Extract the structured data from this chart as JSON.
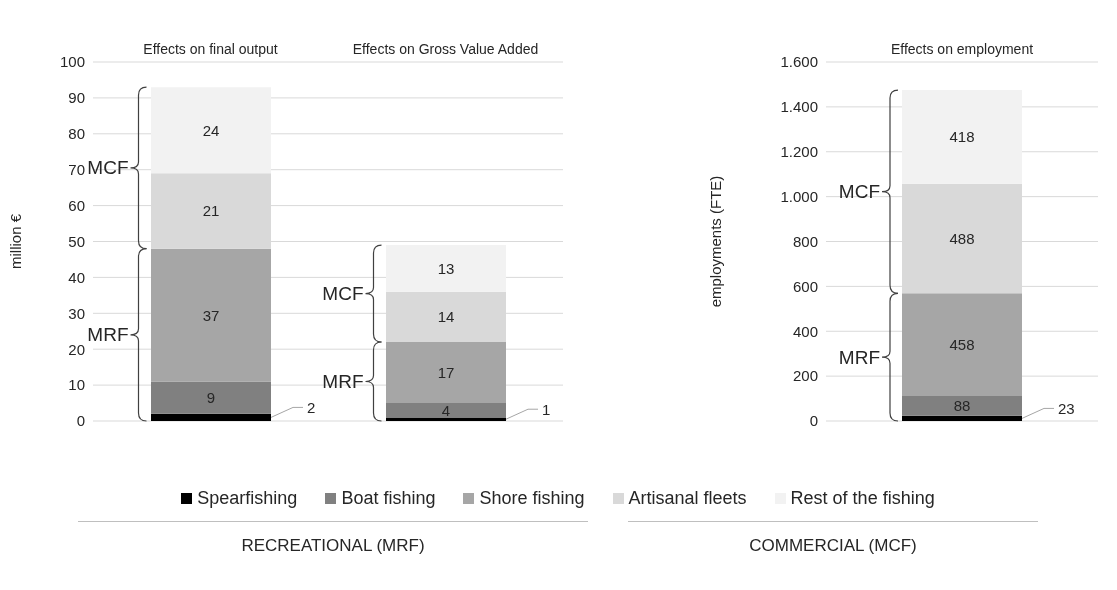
{
  "chart_data": [
    {
      "type": "bar",
      "stacked": true,
      "categories": [
        "Effects on final output",
        "Effects on Gross Value Added"
      ],
      "ylabel": "million €",
      "ylim": [
        0,
        100
      ],
      "yticks": [
        0,
        10,
        20,
        30,
        40,
        50,
        60,
        70,
        80,
        90,
        100
      ],
      "grid": "y",
      "legend": "bottom",
      "data_labels": true,
      "series": [
        {
          "name": "Spearfishing",
          "color": "#000000",
          "values": [
            2,
            1
          ]
        },
        {
          "name": "Boat fishing",
          "color": "#808080",
          "values": [
            9,
            4
          ]
        },
        {
          "name": "Shore fishing",
          "color": "#a6a6a6",
          "values": [
            37,
            17
          ]
        },
        {
          "name": "Artisanal fleets",
          "color": "#d9d9d9",
          "values": [
            21,
            14
          ]
        },
        {
          "name": "Rest of the fishing",
          "color": "#f2f2f2",
          "values": [
            24,
            13
          ]
        }
      ],
      "annotations": [
        "MCF",
        "MRF",
        "MCF",
        "MRF",
        "RECREATIONAL (MRF)",
        "COMMERCIAL (MCF)"
      ]
    },
    {
      "type": "bar",
      "stacked": true,
      "categories": [
        "Effects on employment"
      ],
      "ylabel": "employments (FTE)",
      "ylim": [
        0,
        1600
      ],
      "yticks": [
        0,
        200,
        400,
        600,
        800,
        {
          "value": 1000,
          "label": "1.000"
        },
        {
          "value": 1200,
          "label": "1.200"
        },
        {
          "value": 1400,
          "label": "1.400"
        },
        {
          "value": 1600,
          "label": "1.600"
        }
      ],
      "grid": "y",
      "data_labels": true,
      "series": [
        {
          "color": "#000000",
          "values": [
            23
          ]
        },
        {
          "color": "#808080",
          "values": [
            88
          ]
        },
        {
          "color": "#a6a6a6",
          "values": [
            458
          ]
        },
        {
          "color": "#d9d9d9",
          "values": [
            488
          ]
        },
        {
          "color": "#f2f2f2",
          "values": [
            418
          ]
        }
      ],
      "annotations": [
        "MCF",
        "MRF"
      ]
    }
  ]
}
